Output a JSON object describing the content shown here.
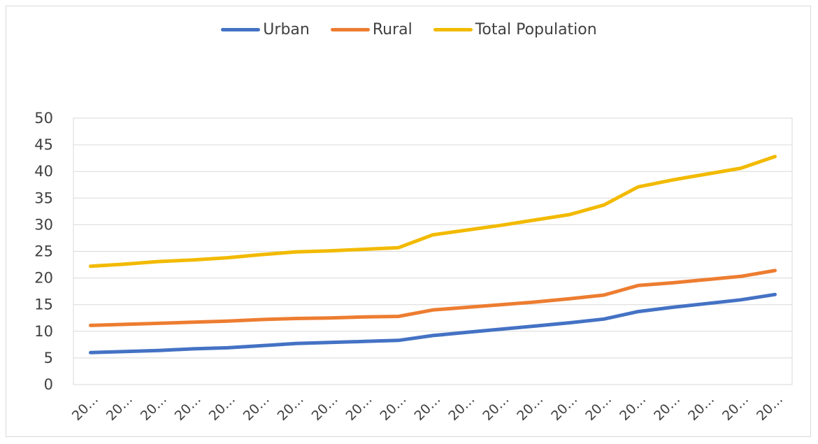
{
  "chart_data": {
    "type": "line",
    "title": "",
    "xlabel": "",
    "ylabel": "",
    "ylim": [
      0,
      50
    ],
    "yticks": [
      "0",
      "5",
      "10",
      "15",
      "20",
      "25",
      "30",
      "35",
      "40",
      "45",
      "50"
    ],
    "grid": true,
    "legend_position": "top",
    "categories": [
      "20…",
      "20…",
      "20…",
      "20…",
      "20…",
      "20…",
      "20…",
      "20…",
      "20…",
      "20…",
      "20…",
      "20…",
      "20…",
      "20…",
      "20…",
      "20…",
      "20…",
      "20…",
      "20…",
      "20…",
      "20…"
    ],
    "series": [
      {
        "name": "Urban",
        "color": "#4472C4",
        "values": [
          6.0,
          6.2,
          6.4,
          6.7,
          6.9,
          7.3,
          7.7,
          7.9,
          8.1,
          8.3,
          9.2,
          9.8,
          10.4,
          11.0,
          11.6,
          12.3,
          13.7,
          14.5,
          15.2,
          15.9,
          16.9
        ]
      },
      {
        "name": "Rural",
        "color": "#ED7D31",
        "values": [
          11.1,
          11.3,
          11.5,
          11.7,
          11.9,
          12.2,
          12.4,
          12.5,
          12.7,
          12.8,
          14.0,
          14.5,
          15.0,
          15.5,
          16.1,
          16.8,
          18.6,
          19.1,
          19.7,
          20.3,
          21.4
        ]
      },
      {
        "name": "Total Population",
        "color": "#F2BA00",
        "values": [
          22.2,
          22.6,
          23.1,
          23.4,
          23.8,
          24.4,
          24.9,
          25.1,
          25.4,
          25.7,
          28.1,
          29.0,
          29.9,
          30.9,
          31.9,
          33.7,
          37.1,
          38.4,
          39.5,
          40.6,
          42.8
        ]
      }
    ]
  }
}
